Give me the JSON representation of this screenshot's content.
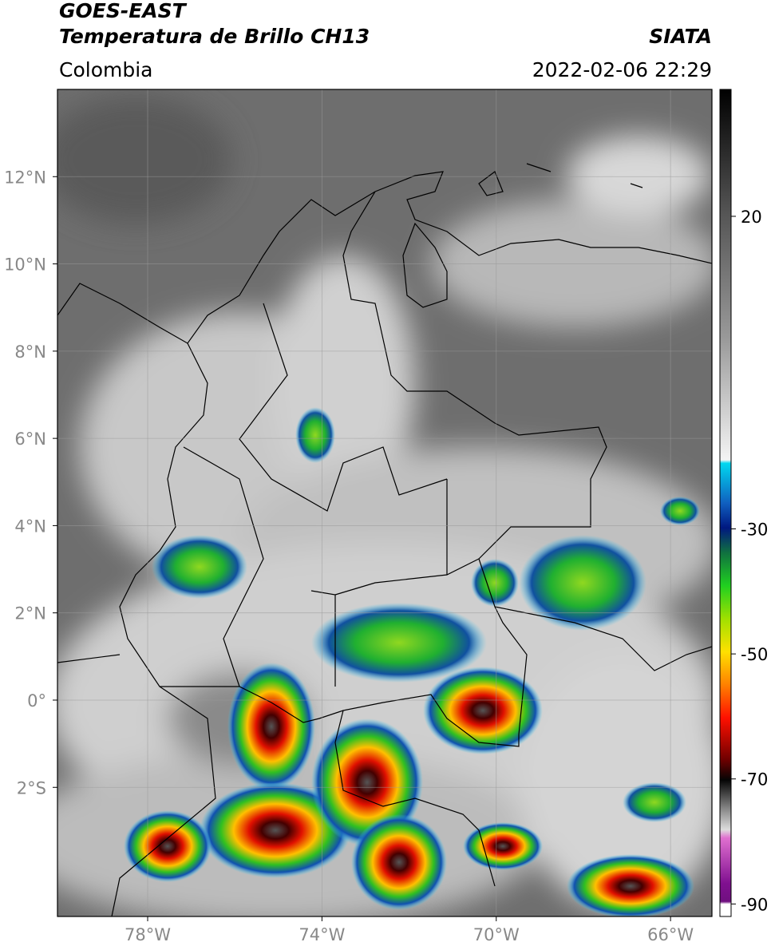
{
  "header": {
    "title": "GOES-EAST",
    "subtitle": "Temperatura de Brillo CH13",
    "source": "SIATA",
    "region": "Colombia",
    "datetime": "2022-02-06 22:29"
  },
  "map": {
    "lonlim": [
      -80.07,
      -65.05
    ],
    "latlim": [
      -4.96,
      14.0
    ],
    "lonticks": [
      {
        "value": -78,
        "label": "78°W"
      },
      {
        "value": -74,
        "label": "74°W"
      },
      {
        "value": -70,
        "label": "70°W"
      },
      {
        "value": -66,
        "label": "66°W"
      }
    ],
    "latticks": [
      {
        "value": 12,
        "label": "12°N"
      },
      {
        "value": 10,
        "label": "10°N"
      },
      {
        "value": 8,
        "label": "8°N"
      },
      {
        "value": 6,
        "label": "6°N"
      },
      {
        "value": 4,
        "label": "4°N"
      },
      {
        "value": 2,
        "label": "2°N"
      },
      {
        "value": 0,
        "label": "0°"
      },
      {
        "value": -2,
        "label": "2°S"
      }
    ],
    "grid": true
  },
  "colorbar": {
    "lim": [
      -92,
      40.3
    ],
    "ticks": [
      20,
      -30,
      -50,
      -70,
      -90
    ]
  }
}
